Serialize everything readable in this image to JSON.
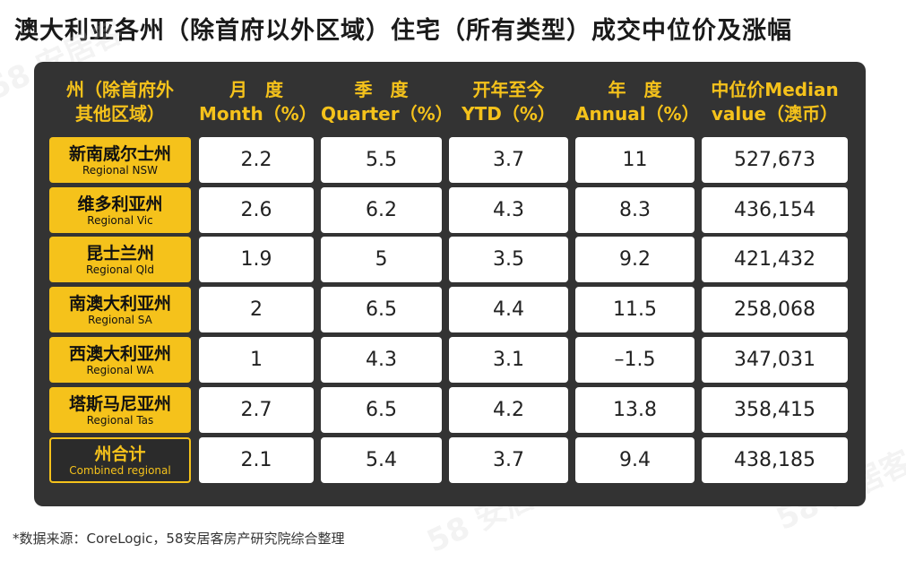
{
  "title": "澳大利亚各州（除首府以外区域）住宅（所有类型）成交中位价及涨幅",
  "headers": [
    [
      "州（除首府外",
      "其他区域）"
    ],
    [
      "月　度",
      "Month（%）"
    ],
    [
      "季　度",
      "Quarter（%）"
    ],
    [
      "开年至今",
      "YTD（%）"
    ],
    [
      "年　度",
      "Annual（%）"
    ],
    [
      "中位价Median",
      "value（澳币）"
    ]
  ],
  "rows": [
    {
      "cn": "新南威尔士州",
      "en": "Regional NSW",
      "cells": [
        "2.2",
        "5.5",
        "3.7",
        "11",
        "527,673"
      ]
    },
    {
      "cn": "维多利亚州",
      "en": "Regional Vic",
      "cells": [
        "2.6",
        "6.2",
        "4.3",
        "8.3",
        "436,154"
      ]
    },
    {
      "cn": "昆士兰州",
      "en": "Regional Qld",
      "cells": [
        "1.9",
        "5",
        "3.5",
        "9.2",
        "421,432"
      ]
    },
    {
      "cn": "南澳大利亚州",
      "en": "Regional SA",
      "cells": [
        "2",
        "6.5",
        "4.4",
        "11.5",
        "258,068"
      ]
    },
    {
      "cn": "西澳大利亚州",
      "en": "Regional WA",
      "cells": [
        "1",
        "4.3",
        "3.1",
        "–1.5",
        "347,031"
      ]
    },
    {
      "cn": "塔斯马尼亚州",
      "en": "Regional Tas",
      "cells": [
        "2.7",
        "6.5",
        "4.2",
        "13.8",
        "358,415"
      ]
    },
    {
      "cn": "州合计",
      "en": "Combined regional",
      "cells": [
        "2.1",
        "5.4",
        "3.7",
        "9.4",
        "438,185"
      ]
    }
  ],
  "source_note": "*数据来源：CoreLogic，58安居客房产研究院综合整理",
  "watermark": "58 安居客",
  "colors": {
    "accent": "#f5c21b",
    "board": "#333333"
  },
  "chart_data": {
    "type": "table",
    "title": "澳大利亚各州（除首府以外区域）住宅（所有类型）成交中位价及涨幅",
    "columns": [
      "州（除首府外其他区域）",
      "月度 Month（%）",
      "季度 Quarter（%）",
      "开年至今 YTD（%）",
      "年度 Annual（%）",
      "中位价Median value（澳币）"
    ],
    "rows": [
      [
        "新南威尔士州 Regional NSW",
        2.2,
        5.5,
        3.7,
        11,
        527673
      ],
      [
        "维多利亚州 Regional Vic",
        2.6,
        6.2,
        4.3,
        8.3,
        436154
      ],
      [
        "昆士兰州 Regional Qld",
        1.9,
        5,
        3.5,
        9.2,
        421432
      ],
      [
        "南澳大利亚州 Regional SA",
        2,
        6.5,
        4.4,
        11.5,
        258068
      ],
      [
        "西澳大利亚州 Regional WA",
        1,
        4.3,
        3.1,
        -1.5,
        347031
      ],
      [
        "塔斯马尼亚州 Regional Tas",
        2.7,
        6.5,
        4.2,
        13.8,
        358415
      ],
      [
        "州合计 Combined regional",
        2.1,
        5.4,
        3.7,
        9.4,
        438185
      ]
    ]
  }
}
